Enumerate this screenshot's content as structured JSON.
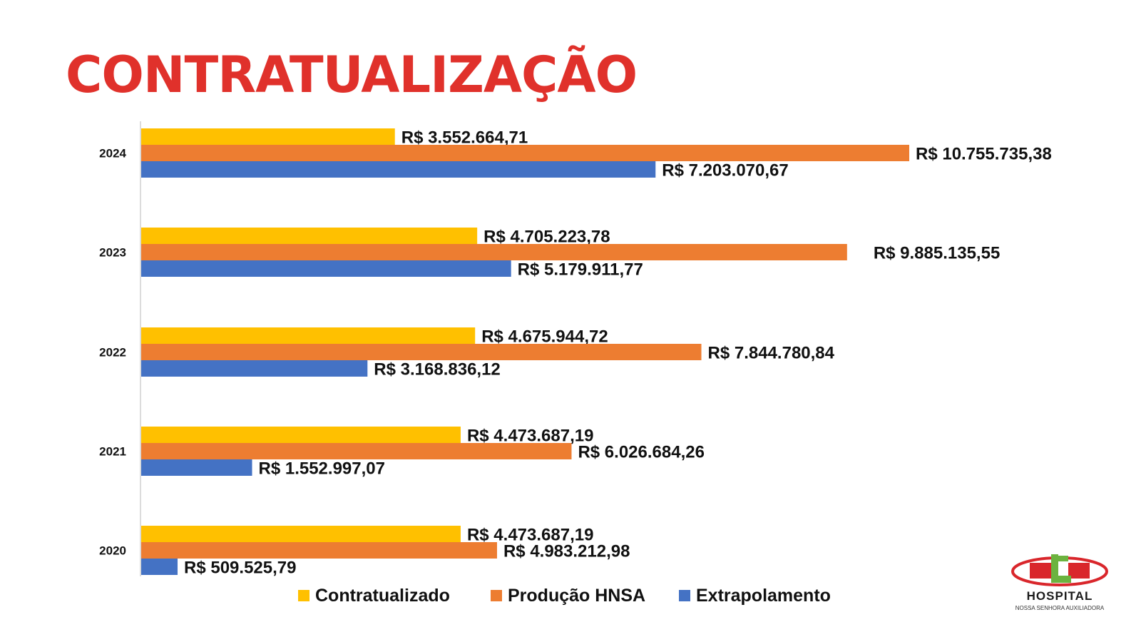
{
  "page": {
    "title": "CONTRATUALIZAÇÃO"
  },
  "colors": {
    "title": "#e0312b",
    "contratualizado": "#ffc000",
    "producao": "#ed7d31",
    "extrapolamento": "#4472c4"
  },
  "logo": {
    "name": "HOSPITAL",
    "subtitle": "NOSSA SENHORA AUXILIADORA",
    "icon": "hospital-logo-icon"
  },
  "chart_data": {
    "type": "bar",
    "orientation": "horizontal",
    "categories": [
      "2024",
      "2023",
      "2022",
      "2021",
      "2020"
    ],
    "series": [
      {
        "name": "Contratualizado",
        "color": "#ffc000",
        "values": [
          3552664.71,
          4705223.78,
          4675944.72,
          4473687.19,
          4473687.19
        ],
        "labels": [
          "R$ 3.552.664,71",
          "R$ 4.705.223,78",
          "R$ 4.675.944,72",
          "R$ 4.473.687,19",
          "R$ 4.473.687,19"
        ]
      },
      {
        "name": "Produção HNSA",
        "color": "#ed7d31",
        "values": [
          10755735.38,
          9885135.55,
          7844780.84,
          6026684.26,
          4983212.98
        ],
        "labels": [
          "R$ 10.755.735,38",
          "R$ 9.885.135,55",
          "R$ 7.844.780,84",
          "R$ 6.026.684,26",
          "R$ 4.983.212,98"
        ]
      },
      {
        "name": "Extrapolamento",
        "color": "#4472c4",
        "values": [
          7203070.67,
          5179911.77,
          3168836.12,
          1552997.07,
          509525.79
        ],
        "labels": [
          "R$ 7.203.070,67",
          "R$ 5.179.911,77",
          "R$ 3.168.836,12",
          "R$ 1.552.997,07",
          "R$ 509.525,79"
        ]
      }
    ],
    "xlim": [
      0,
      11000000
    ],
    "grid": false,
    "legend": "bottom"
  }
}
